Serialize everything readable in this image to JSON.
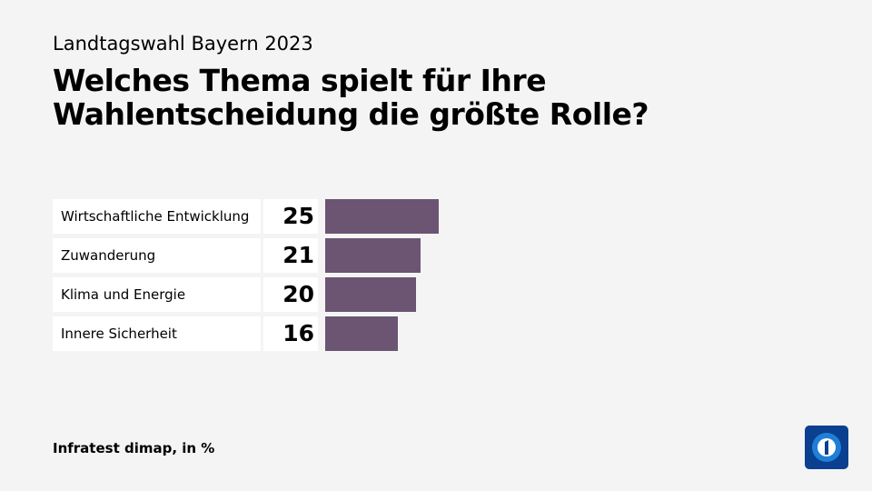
{
  "chart_data": {
    "type": "bar",
    "orientation": "horizontal",
    "subtitle": "Landtagswahl Bayern 2023",
    "title": "Welches Thema spielt für Ihre Wahlentscheidung die größte Rolle?",
    "categories": [
      "Wirtschaftliche Entwicklung",
      "Zuwanderung",
      "Klima und Energie",
      "Innere Sicherheit"
    ],
    "values": [
      25,
      21,
      20,
      16
    ],
    "color": "#6b5573",
    "source": "Infratest dimap, in %"
  }
}
